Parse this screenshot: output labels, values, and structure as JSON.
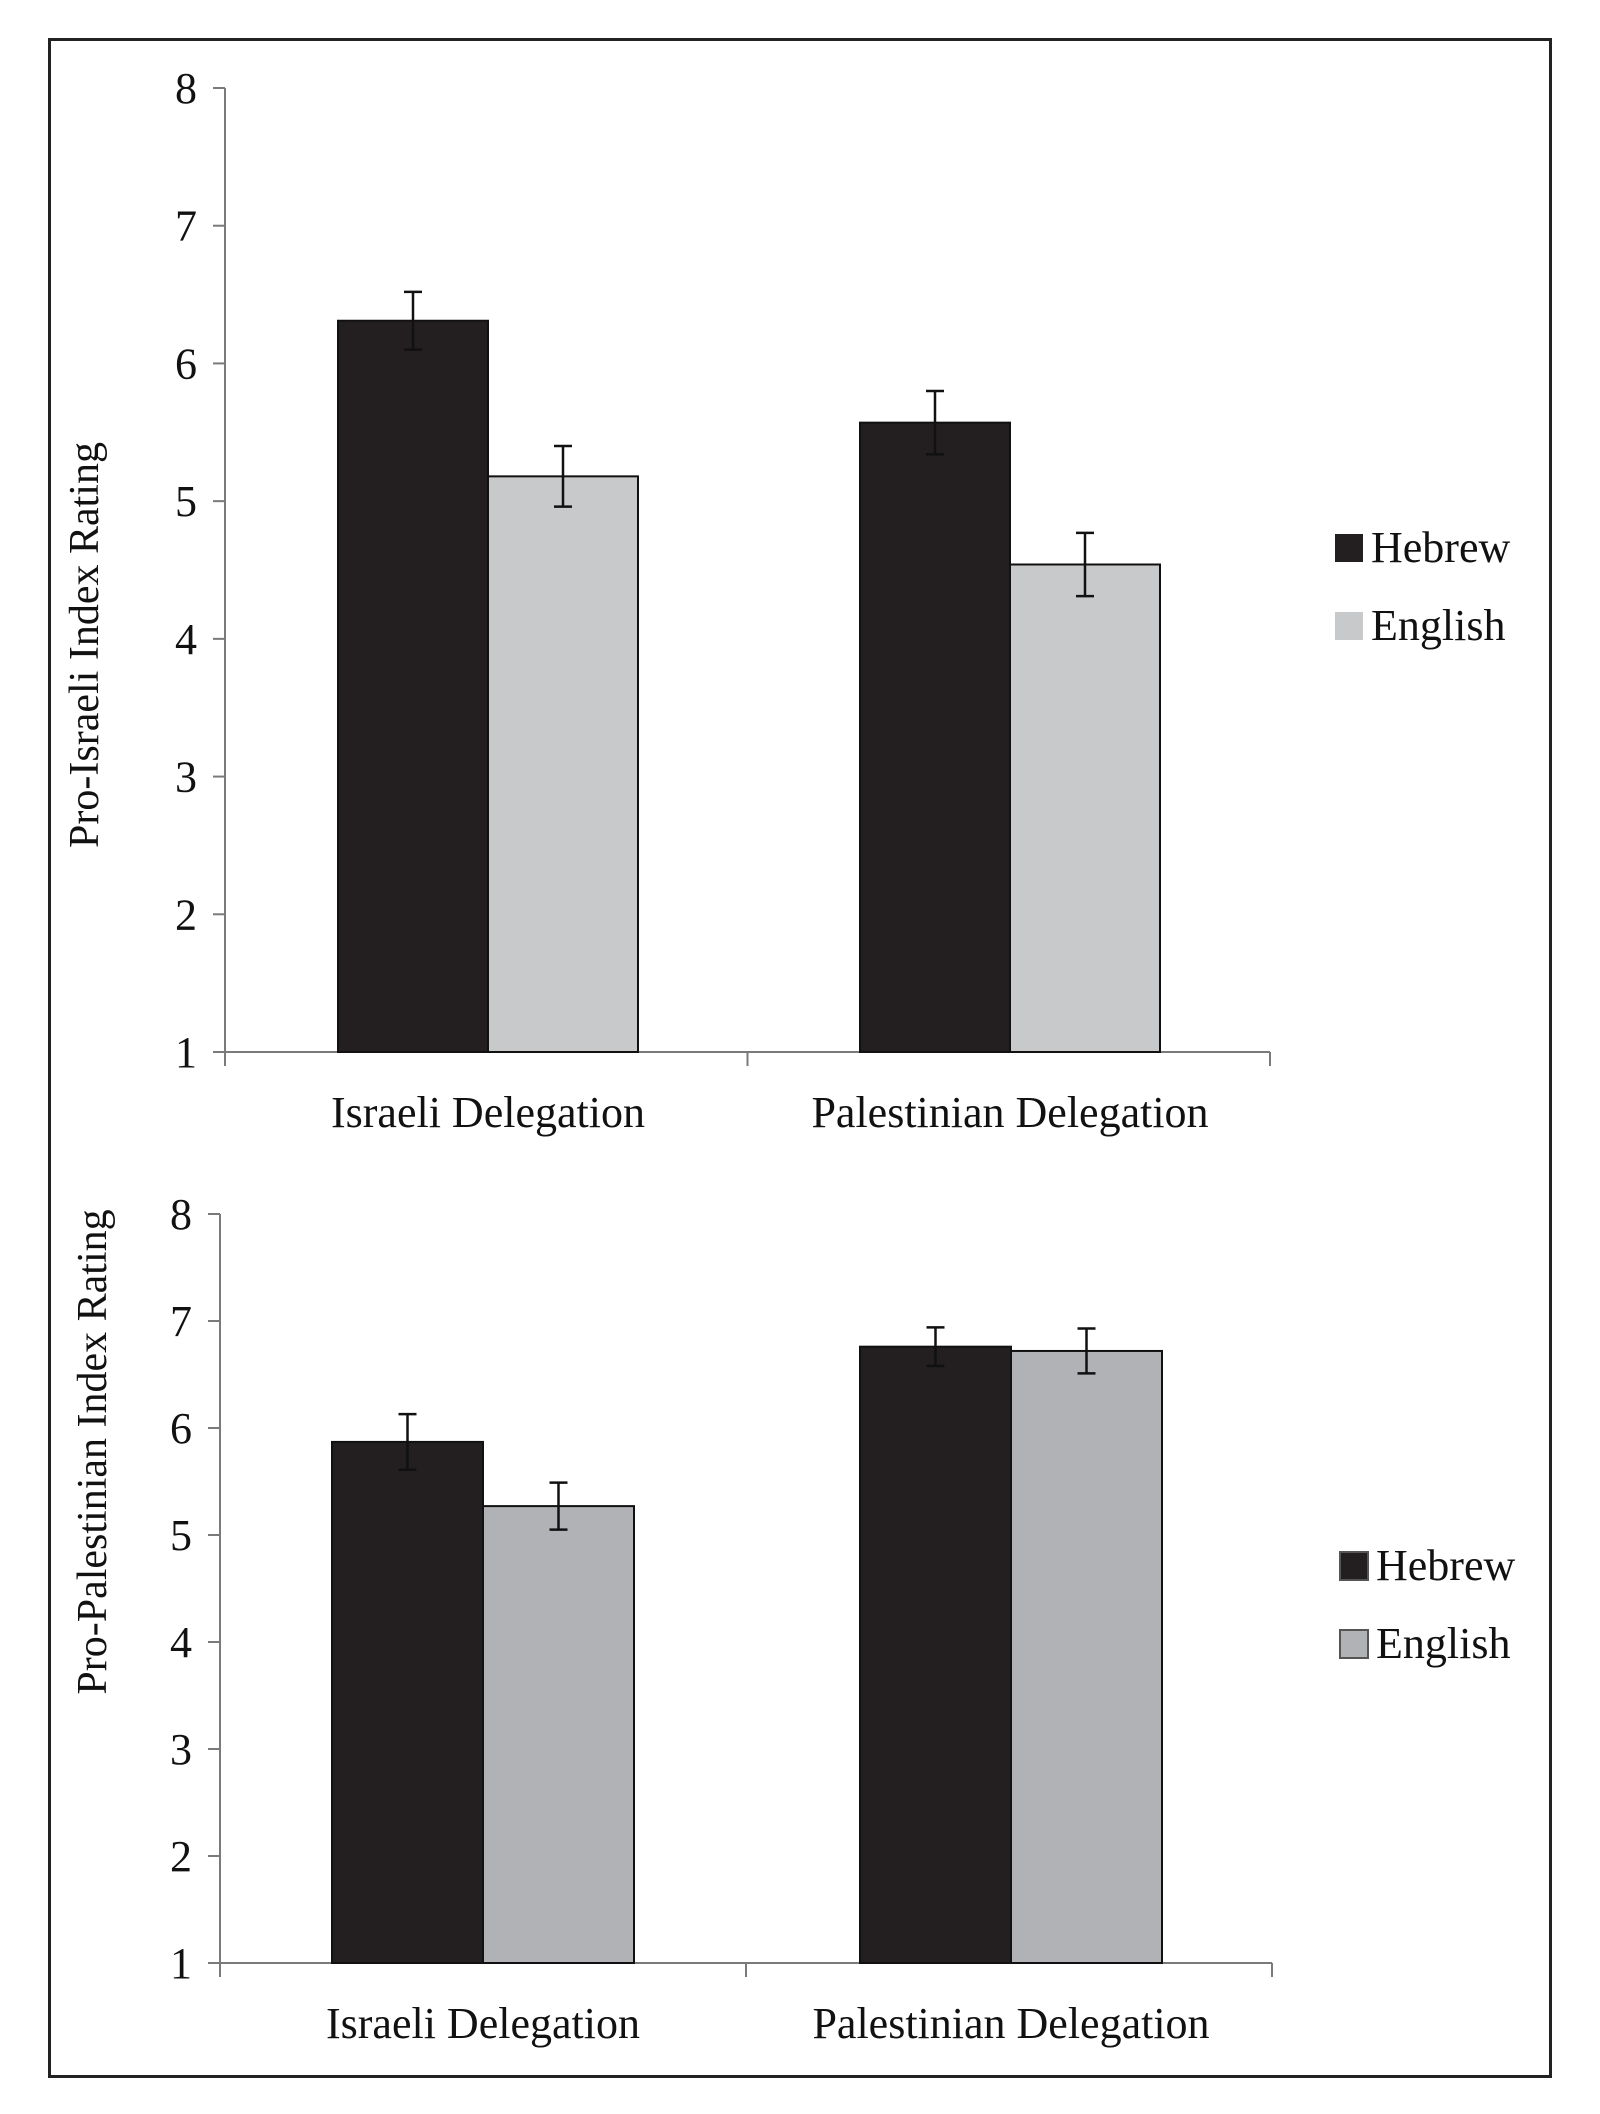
{
  "chart_data": [
    {
      "type": "bar",
      "categories": [
        "Israeli Delegation",
        "Palestinian Delegation"
      ],
      "series": [
        {
          "name": "Hebrew",
          "values": [
            6.31,
            5.57
          ],
          "errors": [
            0.21,
            0.23
          ],
          "color": "#231f20"
        },
        {
          "name": "English",
          "values": [
            5.18,
            4.54
          ],
          "errors": [
            0.22,
            0.23
          ],
          "color": "#c8c9cb"
        }
      ],
      "ylabel": "Pro-Israeli Index Rating",
      "ylim": [
        1,
        8
      ],
      "yticks": [
        "1",
        "2",
        "3",
        "4",
        "5",
        "6",
        "7",
        "8"
      ],
      "grid": false,
      "legend": "right"
    },
    {
      "type": "bar",
      "categories": [
        "Israeli Delegation",
        "Palestinian Delegation"
      ],
      "series": [
        {
          "name": "Hebrew",
          "values": [
            5.87,
            6.76
          ],
          "errors": [
            0.26,
            0.18
          ],
          "color": "#231f20"
        },
        {
          "name": "English",
          "values": [
            5.27,
            6.72
          ],
          "errors": [
            0.22,
            0.21
          ],
          "color": "#b1b2b5"
        }
      ],
      "ylabel": "Pro-Palestinian Index Rating",
      "ylim": [
        1,
        8
      ],
      "yticks": [
        "1",
        "2",
        "3",
        "4",
        "5",
        "6",
        "7",
        "8"
      ],
      "grid": false,
      "legend": "right"
    }
  ]
}
